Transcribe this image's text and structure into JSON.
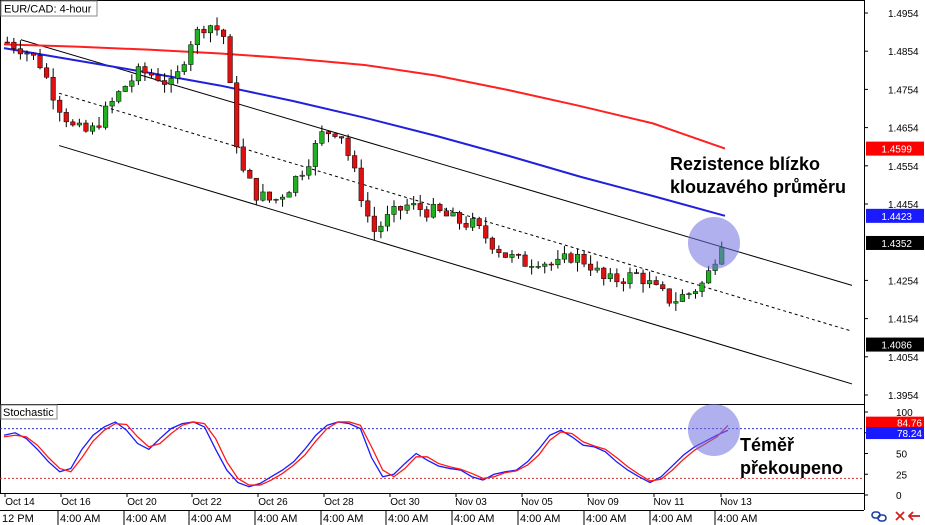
{
  "chart_data": [
    {
      "type": "candlestick",
      "title": "EUR/CAD: 4-hour",
      "y_ticks": [
        "1.4954",
        "1.4854",
        "1.4754",
        "1.4654",
        "1.4554",
        "1.4454",
        "1.4254",
        "1.4154",
        "1.4054",
        "1.3954"
      ],
      "ylim": [
        1.3915,
        1.5003
      ],
      "price_labels": [
        {
          "value": "1.4599",
          "role": "ma-red",
          "color": "#ff0000"
        },
        {
          "value": "1.4423",
          "role": "ma-blue",
          "color": "#1a1aff"
        },
        {
          "value": "1.4352",
          "role": "last-price",
          "color": "#000000"
        },
        {
          "value": "1.4086",
          "role": "channel",
          "color": "#000000"
        }
      ],
      "x_dates": [
        "Oct 14",
        "Oct 16",
        "Oct 20",
        "Oct 22",
        "Oct 26",
        "Oct 28",
        "Oct 30",
        "Nov 03",
        "Nov 05",
        "Nov 09",
        "Nov 11",
        "Nov 13"
      ],
      "x_times": [
        "4:00 AM",
        "4:00 AM",
        "4:00 AM",
        "4:00 AM",
        "4:00 AM",
        "4:00 AM",
        "4:00 AM",
        "4:00 AM",
        "4:00 AM",
        "4:00 AM",
        "4:00 AM"
      ],
      "x_first_time": "12 PM",
      "series": [
        {
          "name": "",
          "kind": "moving-average",
          "color": "#ff2020",
          "x": [
            0,
            0.1,
            0.2,
            0.3,
            0.4,
            0.5,
            0.6,
            0.7,
            0.8,
            0.9,
            1.0
          ],
          "y": [
            1.4872,
            1.4866,
            1.4858,
            1.4848,
            1.4835,
            1.4818,
            1.479,
            1.4752,
            1.471,
            1.4665,
            1.4599
          ]
        },
        {
          "name": "",
          "kind": "moving-average",
          "color": "#2020dd",
          "x": [
            0,
            0.1,
            0.2,
            0.3,
            0.4,
            0.5,
            0.6,
            0.7,
            0.8,
            0.9,
            1.0
          ],
          "y": [
            1.4862,
            1.483,
            1.4798,
            1.4764,
            1.4724,
            1.468,
            1.4632,
            1.458,
            1.4525,
            1.4475,
            1.4423
          ]
        }
      ],
      "channel": {
        "upper_start": 1.4884,
        "upper_end": 1.4241,
        "middle_start": 1.4744,
        "middle_end": 1.4121,
        "lower_start": 1.4607,
        "lower_end": 1.3983
      },
      "annotation": {
        "text": [
          "Rezistence blízko",
          "klouzavého průměru"
        ]
      }
    },
    {
      "type": "line",
      "title": "Stochastic",
      "y_ticks": [
        "100",
        "75",
        "50",
        "25",
        "0"
      ],
      "ylim": [
        0,
        100
      ],
      "levels": [
        80,
        20
      ],
      "values_labels": [
        {
          "value": "84.76",
          "color": "#ff0000"
        },
        {
          "value": "78.24",
          "color": "#1a1aff"
        }
      ],
      "series": [
        {
          "name": "",
          "color": "#1a1aff",
          "y": [
            72,
            75,
            68,
            55,
            40,
            28,
            32,
            55,
            72,
            82,
            88,
            78,
            62,
            55,
            68,
            80,
            86,
            88,
            82,
            55,
            30,
            15,
            10,
            14,
            22,
            30,
            40,
            55,
            72,
            84,
            88,
            86,
            80,
            45,
            22,
            25,
            38,
            50,
            42,
            35,
            32,
            30,
            22,
            18,
            25,
            28,
            30,
            40,
            55,
            72,
            78,
            70,
            60,
            58,
            52,
            40,
            30,
            22,
            15,
            22,
            35,
            48,
            58,
            65,
            72,
            78
          ]
        },
        {
          "name": "",
          "color": "#ff1a1a",
          "y": [
            70,
            72,
            70,
            60,
            45,
            32,
            28,
            45,
            65,
            78,
            86,
            85,
            70,
            58,
            62,
            74,
            84,
            88,
            86,
            68,
            40,
            20,
            12,
            12,
            18,
            26,
            36,
            48,
            65,
            80,
            88,
            88,
            84,
            58,
            30,
            22,
            32,
            46,
            46,
            38,
            34,
            31,
            26,
            20,
            22,
            27,
            29,
            36,
            48,
            66,
            76,
            74,
            64,
            59,
            55,
            45,
            34,
            25,
            17,
            19,
            30,
            43,
            54,
            62,
            70,
            84
          ]
        }
      ],
      "annotation": {
        "text": [
          "Téměř",
          "překoupeno"
        ]
      }
    }
  ]
}
